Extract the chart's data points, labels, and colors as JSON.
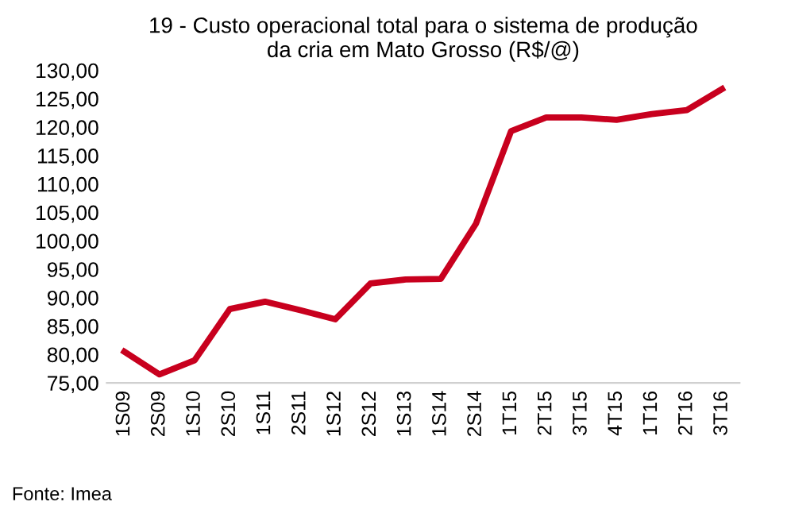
{
  "chart_data": {
    "type": "line",
    "title": "19 - Custo operacional total para o sistema de produção\nda cria em Mato Grosso (R$/@)",
    "categories": [
      "1S09",
      "2S09",
      "1S10",
      "2S10",
      "1S11",
      "2S11",
      "1S12",
      "2S12",
      "1S13",
      "1S14",
      "2S14",
      "1T15",
      "2T15",
      "3T15",
      "4T15",
      "1T16",
      "2T16",
      "3T16"
    ],
    "series": [
      {
        "color": "#c8001e",
        "values": [
          80.5,
          76.5,
          79.0,
          88.0,
          89.3,
          87.8,
          86.2,
          92.5,
          93.2,
          93.3,
          103.0,
          119.3,
          121.7,
          121.7,
          121.3,
          122.3,
          123.0,
          126.7
        ]
      }
    ],
    "ylim": [
      75,
      130
    ],
    "yticks": [
      {
        "value": 75,
        "label": "75,00"
      },
      {
        "value": 80,
        "label": "80,00"
      },
      {
        "value": 85,
        "label": "85,00"
      },
      {
        "value": 90,
        "label": "90,00"
      },
      {
        "value": 95,
        "label": "95,00"
      },
      {
        "value": 100,
        "label": "100,00"
      },
      {
        "value": 105,
        "label": "105,00"
      },
      {
        "value": 110,
        "label": "110,00"
      },
      {
        "value": 115,
        "label": "115,00"
      },
      {
        "value": 120,
        "label": "120,00"
      },
      {
        "value": 125,
        "label": "125,00"
      },
      {
        "value": 130,
        "label": "130,00"
      }
    ],
    "grid": false,
    "legend": false,
    "annotations": [
      "Fonte: Imea"
    ]
  }
}
